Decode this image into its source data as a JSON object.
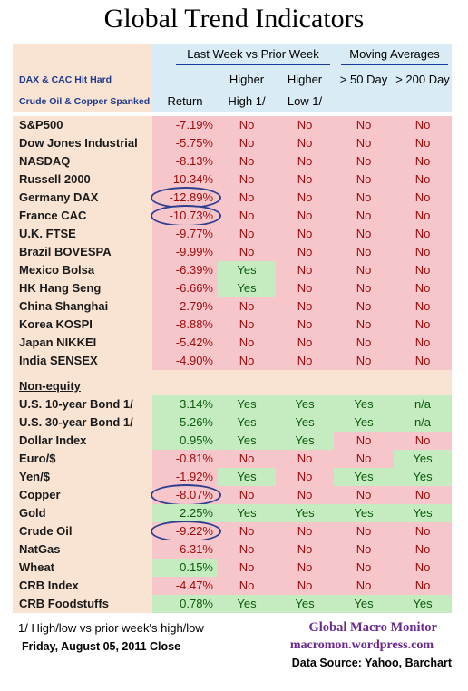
{
  "title": "Global Trend Indicators",
  "headers": {
    "note_line1": "DAX & CAC Hit Hard",
    "note_line2": "Crude Oil & Copper Spanked",
    "group1": "Last Week vs Prior Week",
    "group2": "Moving Averages",
    "return": "Return",
    "higher_high_top": "Higher",
    "higher_high_bot": "High 1/",
    "higher_low_top": "Higher",
    "higher_low_bot": "Low 1/",
    "ma50": "> 50 Day",
    "ma200": "> 200 Day"
  },
  "colors": {
    "negative_bg": "#f7c6ca",
    "positive_bg": "#c5ecc0",
    "negative_text": "#9e0a0a",
    "positive_text": "#0b5a0b",
    "label_bg": "#f9e4d4",
    "header_bg": "#d9ebf4",
    "circle": "#2f3f8f"
  },
  "chart_data": {
    "type": "table",
    "title": "Global Trend Indicators",
    "columns": [
      "Return",
      "Higher High 1/",
      "Higher Low 1/",
      "> 50 Day",
      "> 200 Day"
    ],
    "equity": [
      {
        "name": "S&P500",
        "ret": "-7.19%",
        "hh": "No",
        "hl": "No",
        "m50": "No",
        "m200": "No"
      },
      {
        "name": "Dow Jones Industrial",
        "ret": "-5.75%",
        "hh": "No",
        "hl": "No",
        "m50": "No",
        "m200": "No"
      },
      {
        "name": "NASDAQ",
        "ret": "-8.13%",
        "hh": "No",
        "hl": "No",
        "m50": "No",
        "m200": "No"
      },
      {
        "name": "Russell 2000",
        "ret": "-10.34%",
        "hh": "No",
        "hl": "No",
        "m50": "No",
        "m200": "No"
      },
      {
        "name": "Germany DAX",
        "ret": "-12.89%",
        "hh": "No",
        "hl": "No",
        "m50": "No",
        "m200": "No",
        "circled": true
      },
      {
        "name": "France CAC",
        "ret": "-10.73%",
        "hh": "No",
        "hl": "No",
        "m50": "No",
        "m200": "No",
        "circled": true
      },
      {
        "name": "U.K. FTSE",
        "ret": "-9.77%",
        "hh": "No",
        "hl": "No",
        "m50": "No",
        "m200": "No"
      },
      {
        "name": "Brazil BOVESPA",
        "ret": "-9.99%",
        "hh": "No",
        "hl": "No",
        "m50": "No",
        "m200": "No"
      },
      {
        "name": "Mexico Bolsa",
        "ret": "-6.39%",
        "hh": "Yes",
        "hl": "No",
        "m50": "No",
        "m200": "No"
      },
      {
        "name": "HK  Hang Seng",
        "ret": "-6.66%",
        "hh": "Yes",
        "hl": "No",
        "m50": "No",
        "m200": "No"
      },
      {
        "name": "China Shanghai",
        "ret": "-2.79%",
        "hh": "No",
        "hl": "No",
        "m50": "No",
        "m200": "No"
      },
      {
        "name": "Korea KOSPI",
        "ret": "-8.88%",
        "hh": "No",
        "hl": "No",
        "m50": "No",
        "m200": "No"
      },
      {
        "name": "Japan NIKKEI",
        "ret": "-5.42%",
        "hh": "No",
        "hl": "No",
        "m50": "No",
        "m200": "No"
      },
      {
        "name": "India SENSEX",
        "ret": "-4.90%",
        "hh": "No",
        "hl": "No",
        "m50": "No",
        "m200": "No"
      }
    ],
    "section_label": "Non-equity",
    "nonequity": [
      {
        "name": "U.S. 10-year Bond 1/",
        "ret": "3.14%",
        "hh": "Yes",
        "hl": "Yes",
        "m50": "Yes",
        "m200": "n/a"
      },
      {
        "name": "U.S. 30-year Bond 1/",
        "ret": "5.26%",
        "hh": "Yes",
        "hl": "Yes",
        "m50": "Yes",
        "m200": "n/a"
      },
      {
        "name": "Dollar Index",
        "ret": "0.95%",
        "hh": "Yes",
        "hl": "Yes",
        "m50": "No",
        "m200": "No"
      },
      {
        "name": "Euro/$",
        "ret": "-0.81%",
        "hh": "No",
        "hl": "No",
        "m50": "No",
        "m200": "Yes"
      },
      {
        "name": "Yen/$",
        "ret": "-1.92%",
        "hh": "Yes",
        "hl": "No",
        "m50": "Yes",
        "m200": "Yes"
      },
      {
        "name": "Copper",
        "ret": "-8.07%",
        "hh": "No",
        "hl": "No",
        "m50": "No",
        "m200": "No",
        "circled": true
      },
      {
        "name": "Gold",
        "ret": "2.25%",
        "hh": "Yes",
        "hl": "Yes",
        "m50": "Yes",
        "m200": "Yes"
      },
      {
        "name": "Crude Oil",
        "ret": "-9.22%",
        "hh": "No",
        "hl": "No",
        "m50": "No",
        "m200": "No",
        "circled": true
      },
      {
        "name": "NatGas",
        "ret": "-6.31%",
        "hh": "No",
        "hl": "No",
        "m50": "No",
        "m200": "No"
      },
      {
        "name": "Wheat",
        "ret": "0.15%",
        "hh": "No",
        "hl": "No",
        "m50": "No",
        "m200": "No"
      },
      {
        "name": "CRB Index",
        "ret": "-4.47%",
        "hh": "No",
        "hl": "No",
        "m50": "No",
        "m200": "No"
      },
      {
        "name": "CRB Foodstuffs",
        "ret": "0.78%",
        "hh": "Yes",
        "hl": "Yes",
        "m50": "Yes",
        "m200": "Yes"
      }
    ]
  },
  "footer": {
    "note": "1/  High/low vs prior week's high/low",
    "date": "Friday, August 05, 2011  Close",
    "brand": "Global Macro Monitor",
    "url": "macromon.wordpress.com",
    "source": "Data Source: Yahoo, Barchart"
  }
}
